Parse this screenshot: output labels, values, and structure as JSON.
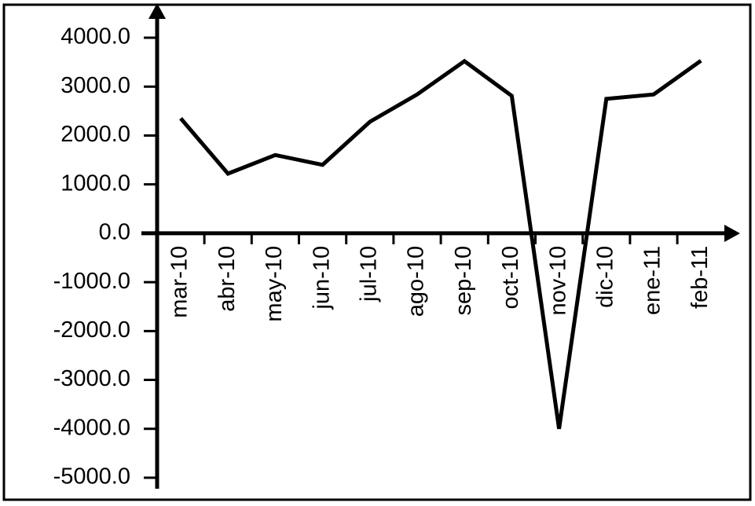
{
  "chart_data": {
    "type": "line",
    "categories": [
      "mar-10",
      "abr-10",
      "may-10",
      "jun-10",
      "jul-10",
      "ago-10",
      "sep-10",
      "oct-10",
      "nov-10",
      "dic-10",
      "ene-11",
      "feb-11"
    ],
    "values": [
      2350,
      1220,
      1600,
      1400,
      2280,
      2840,
      3520,
      2810,
      -4000,
      2750,
      2840,
      3530
    ],
    "color": "#000000",
    "ylim": [
      -5000,
      4000
    ],
    "yticks": [
      {
        "value": 4000,
        "label": "4000.0"
      },
      {
        "value": 3000,
        "label": "3000.0"
      },
      {
        "value": 2000,
        "label": "2000.0"
      },
      {
        "value": 1000,
        "label": "1000.0"
      },
      {
        "value": 0,
        "label": "0.0"
      },
      {
        "value": -1000,
        "label": "-1000.0"
      },
      {
        "value": -2000,
        "label": "-2000.0"
      },
      {
        "value": -3000,
        "label": "-3000.0"
      },
      {
        "value": -4000,
        "label": "-4000.0"
      },
      {
        "value": -5000,
        "label": "-5000.0"
      }
    ],
    "grid": false
  }
}
